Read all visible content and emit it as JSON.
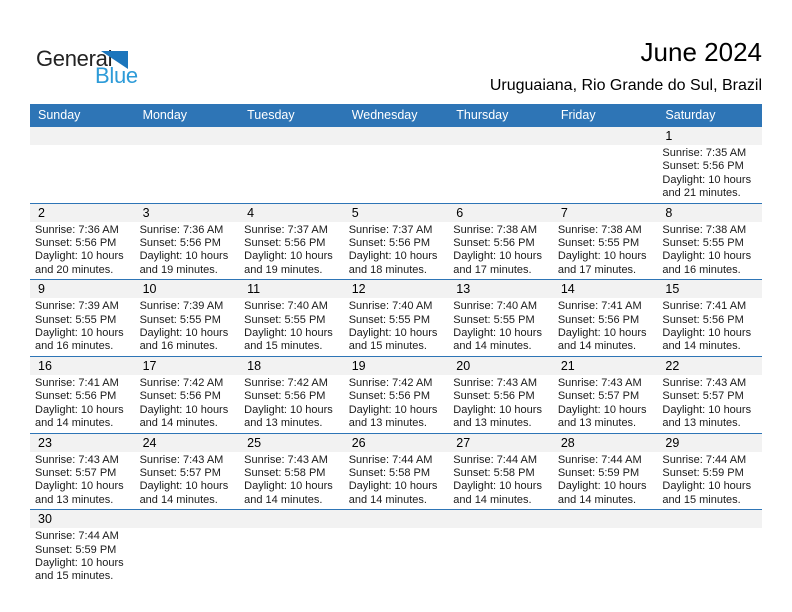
{
  "logo": {
    "general": "General",
    "blue": "Blue"
  },
  "header": {
    "title": "June 2024",
    "subtitle": "Uruguaiana, Rio Grande do Sul, Brazil"
  },
  "colors": {
    "header_bar": "#2e75b6",
    "row_separator": "#2e75b6",
    "day_strip_bg": "#f2f2f2",
    "logo_triangle": "#1b75bc",
    "logo_blue_text": "#2d9bd8",
    "body_text": "#1a1a1a"
  },
  "calendar": {
    "weekdays": [
      "Sunday",
      "Monday",
      "Tuesday",
      "Wednesday",
      "Thursday",
      "Friday",
      "Saturday"
    ],
    "weeks": [
      [
        {
          "day": "",
          "lines": []
        },
        {
          "day": "",
          "lines": []
        },
        {
          "day": "",
          "lines": []
        },
        {
          "day": "",
          "lines": []
        },
        {
          "day": "",
          "lines": []
        },
        {
          "day": "",
          "lines": []
        },
        {
          "day": "1",
          "lines": [
            "Sunrise: 7:35 AM",
            "Sunset: 5:56 PM",
            "Daylight: 10 hours",
            "and 21 minutes."
          ]
        }
      ],
      [
        {
          "day": "2",
          "lines": [
            "Sunrise: 7:36 AM",
            "Sunset: 5:56 PM",
            "Daylight: 10 hours",
            "and 20 minutes."
          ]
        },
        {
          "day": "3",
          "lines": [
            "Sunrise: 7:36 AM",
            "Sunset: 5:56 PM",
            "Daylight: 10 hours",
            "and 19 minutes."
          ]
        },
        {
          "day": "4",
          "lines": [
            "Sunrise: 7:37 AM",
            "Sunset: 5:56 PM",
            "Daylight: 10 hours",
            "and 19 minutes."
          ]
        },
        {
          "day": "5",
          "lines": [
            "Sunrise: 7:37 AM",
            "Sunset: 5:56 PM",
            "Daylight: 10 hours",
            "and 18 minutes."
          ]
        },
        {
          "day": "6",
          "lines": [
            "Sunrise: 7:38 AM",
            "Sunset: 5:56 PM",
            "Daylight: 10 hours",
            "and 17 minutes."
          ]
        },
        {
          "day": "7",
          "lines": [
            "Sunrise: 7:38 AM",
            "Sunset: 5:55 PM",
            "Daylight: 10 hours",
            "and 17 minutes."
          ]
        },
        {
          "day": "8",
          "lines": [
            "Sunrise: 7:38 AM",
            "Sunset: 5:55 PM",
            "Daylight: 10 hours",
            "and 16 minutes."
          ]
        }
      ],
      [
        {
          "day": "9",
          "lines": [
            "Sunrise: 7:39 AM",
            "Sunset: 5:55 PM",
            "Daylight: 10 hours",
            "and 16 minutes."
          ]
        },
        {
          "day": "10",
          "lines": [
            "Sunrise: 7:39 AM",
            "Sunset: 5:55 PM",
            "Daylight: 10 hours",
            "and 16 minutes."
          ]
        },
        {
          "day": "11",
          "lines": [
            "Sunrise: 7:40 AM",
            "Sunset: 5:55 PM",
            "Daylight: 10 hours",
            "and 15 minutes."
          ]
        },
        {
          "day": "12",
          "lines": [
            "Sunrise: 7:40 AM",
            "Sunset: 5:55 PM",
            "Daylight: 10 hours",
            "and 15 minutes."
          ]
        },
        {
          "day": "13",
          "lines": [
            "Sunrise: 7:40 AM",
            "Sunset: 5:55 PM",
            "Daylight: 10 hours",
            "and 14 minutes."
          ]
        },
        {
          "day": "14",
          "lines": [
            "Sunrise: 7:41 AM",
            "Sunset: 5:56 PM",
            "Daylight: 10 hours",
            "and 14 minutes."
          ]
        },
        {
          "day": "15",
          "lines": [
            "Sunrise: 7:41 AM",
            "Sunset: 5:56 PM",
            "Daylight: 10 hours",
            "and 14 minutes."
          ]
        }
      ],
      [
        {
          "day": "16",
          "lines": [
            "Sunrise: 7:41 AM",
            "Sunset: 5:56 PM",
            "Daylight: 10 hours",
            "and 14 minutes."
          ]
        },
        {
          "day": "17",
          "lines": [
            "Sunrise: 7:42 AM",
            "Sunset: 5:56 PM",
            "Daylight: 10 hours",
            "and 14 minutes."
          ]
        },
        {
          "day": "18",
          "lines": [
            "Sunrise: 7:42 AM",
            "Sunset: 5:56 PM",
            "Daylight: 10 hours",
            "and 13 minutes."
          ]
        },
        {
          "day": "19",
          "lines": [
            "Sunrise: 7:42 AM",
            "Sunset: 5:56 PM",
            "Daylight: 10 hours",
            "and 13 minutes."
          ]
        },
        {
          "day": "20",
          "lines": [
            "Sunrise: 7:43 AM",
            "Sunset: 5:56 PM",
            "Daylight: 10 hours",
            "and 13 minutes."
          ]
        },
        {
          "day": "21",
          "lines": [
            "Sunrise: 7:43 AM",
            "Sunset: 5:57 PM",
            "Daylight: 10 hours",
            "and 13 minutes."
          ]
        },
        {
          "day": "22",
          "lines": [
            "Sunrise: 7:43 AM",
            "Sunset: 5:57 PM",
            "Daylight: 10 hours",
            "and 13 minutes."
          ]
        }
      ],
      [
        {
          "day": "23",
          "lines": [
            "Sunrise: 7:43 AM",
            "Sunset: 5:57 PM",
            "Daylight: 10 hours",
            "and 13 minutes."
          ]
        },
        {
          "day": "24",
          "lines": [
            "Sunrise: 7:43 AM",
            "Sunset: 5:57 PM",
            "Daylight: 10 hours",
            "and 14 minutes."
          ]
        },
        {
          "day": "25",
          "lines": [
            "Sunrise: 7:43 AM",
            "Sunset: 5:58 PM",
            "Daylight: 10 hours",
            "and 14 minutes."
          ]
        },
        {
          "day": "26",
          "lines": [
            "Sunrise: 7:44 AM",
            "Sunset: 5:58 PM",
            "Daylight: 10 hours",
            "and 14 minutes."
          ]
        },
        {
          "day": "27",
          "lines": [
            "Sunrise: 7:44 AM",
            "Sunset: 5:58 PM",
            "Daylight: 10 hours",
            "and 14 minutes."
          ]
        },
        {
          "day": "28",
          "lines": [
            "Sunrise: 7:44 AM",
            "Sunset: 5:59 PM",
            "Daylight: 10 hours",
            "and 14 minutes."
          ]
        },
        {
          "day": "29",
          "lines": [
            "Sunrise: 7:44 AM",
            "Sunset: 5:59 PM",
            "Daylight: 10 hours",
            "and 15 minutes."
          ]
        }
      ],
      [
        {
          "day": "30",
          "lines": [
            "Sunrise: 7:44 AM",
            "Sunset: 5:59 PM",
            "Daylight: 10 hours",
            "and 15 minutes."
          ]
        },
        {
          "day": "",
          "lines": []
        },
        {
          "day": "",
          "lines": []
        },
        {
          "day": "",
          "lines": []
        },
        {
          "day": "",
          "lines": []
        },
        {
          "day": "",
          "lines": []
        },
        {
          "day": "",
          "lines": []
        }
      ]
    ]
  }
}
